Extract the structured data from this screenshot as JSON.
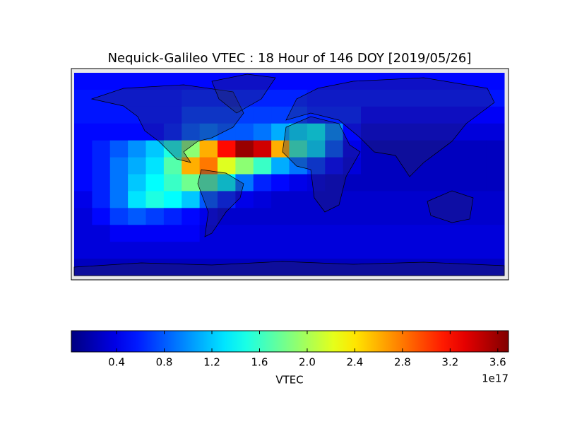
{
  "chart_data": {
    "type": "heatmap",
    "title": "Nequick-Galileo VTEC : 18 Hour of 146 DOY [2019/05/26]",
    "xlim": [
      -180,
      180
    ],
    "ylim": [
      90,
      -90
    ],
    "colormap": "jet",
    "values": [
      [
        0.5,
        0.5,
        0.5,
        0.5,
        0.5,
        0.5,
        0.5,
        0.5,
        0.5,
        0.5,
        0.5,
        0.5,
        0.5,
        0.5,
        0.5,
        0.5,
        0.5,
        0.5,
        0.5,
        0.5,
        0.5,
        0.5,
        0.5,
        0.5
      ],
      [
        0.55,
        0.55,
        0.55,
        0.55,
        0.55,
        0.55,
        0.6,
        0.6,
        0.6,
        0.6,
        0.6,
        0.6,
        0.6,
        0.55,
        0.55,
        0.55,
        0.55,
        0.55,
        0.55,
        0.55,
        0.55,
        0.55,
        0.55,
        0.55
      ],
      [
        0.55,
        0.55,
        0.55,
        0.55,
        0.55,
        0.55,
        0.7,
        0.7,
        0.7,
        0.7,
        0.7,
        0.7,
        0.7,
        0.6,
        0.6,
        0.6,
        0.45,
        0.45,
        0.45,
        0.45,
        0.45,
        0.45,
        0.45,
        0.45
      ],
      [
        0.5,
        0.5,
        0.5,
        0.5,
        0.5,
        0.6,
        0.8,
        0.9,
        0.8,
        0.8,
        0.9,
        1.1,
        1.3,
        1.4,
        1.0,
        0.5,
        0.35,
        0.35,
        0.35,
        0.35,
        0.35,
        0.35,
        0.35,
        0.35
      ],
      [
        0.5,
        0.6,
        0.8,
        1.0,
        1.2,
        1.5,
        1.9,
        2.6,
        3.2,
        3.6,
        3.4,
        2.6,
        1.6,
        1.3,
        0.8,
        0.4,
        0.25,
        0.25,
        0.25,
        0.25,
        0.25,
        0.25,
        0.25,
        0.25
      ],
      [
        0.5,
        0.6,
        0.9,
        1.1,
        1.3,
        1.7,
        2.6,
        2.8,
        2.2,
        1.9,
        1.6,
        1.1,
        0.9,
        0.7,
        0.5,
        0.35,
        0.25,
        0.25,
        0.25,
        0.25,
        0.25,
        0.25,
        0.25,
        0.25
      ],
      [
        0.5,
        0.6,
        0.9,
        1.2,
        1.4,
        1.6,
        1.8,
        1.7,
        1.4,
        0.9,
        0.6,
        0.5,
        0.4,
        0.35,
        0.3,
        0.25,
        0.25,
        0.25,
        0.25,
        0.25,
        0.25,
        0.25,
        0.25,
        0.25
      ],
      [
        0.4,
        0.6,
        0.9,
        1.3,
        1.5,
        1.4,
        1.2,
        0.8,
        0.6,
        0.4,
        0.35,
        0.3,
        0.3,
        0.3,
        0.3,
        0.3,
        0.3,
        0.3,
        0.3,
        0.3,
        0.3,
        0.3,
        0.3,
        0.3
      ],
      [
        0.35,
        0.5,
        0.7,
        0.8,
        0.7,
        0.6,
        0.5,
        0.4,
        0.3,
        0.3,
        0.3,
        0.3,
        0.3,
        0.3,
        0.3,
        0.3,
        0.3,
        0.3,
        0.3,
        0.3,
        0.3,
        0.3,
        0.3,
        0.3
      ],
      [
        0.35,
        0.35,
        0.45,
        0.45,
        0.45,
        0.45,
        0.45,
        0.35,
        0.35,
        0.35,
        0.35,
        0.35,
        0.35,
        0.35,
        0.35,
        0.35,
        0.35,
        0.35,
        0.35,
        0.35,
        0.35,
        0.35,
        0.35,
        0.35
      ],
      [
        0.35,
        0.35,
        0.35,
        0.35,
        0.35,
        0.35,
        0.35,
        0.35,
        0.35,
        0.35,
        0.35,
        0.35,
        0.35,
        0.35,
        0.35,
        0.35,
        0.35,
        0.35,
        0.35,
        0.35,
        0.35,
        0.35,
        0.35,
        0.35
      ],
      [
        0.25,
        0.25,
        0.25,
        0.25,
        0.25,
        0.25,
        0.25,
        0.25,
        0.25,
        0.25,
        0.25,
        0.25,
        0.25,
        0.25,
        0.25,
        0.25,
        0.25,
        0.25,
        0.25,
        0.25,
        0.25,
        0.25,
        0.25,
        0.25
      ]
    ],
    "colorbar": {
      "label": "VTEC",
      "offset_label": "1e17",
      "lim": [
        0.02,
        3.69
      ],
      "ticks": [
        0.4,
        0.8,
        1.2,
        1.6,
        {
          "value": 2,
          "label": "2.0"
        },
        2.4,
        2.8,
        3.2,
        3.6
      ]
    }
  }
}
